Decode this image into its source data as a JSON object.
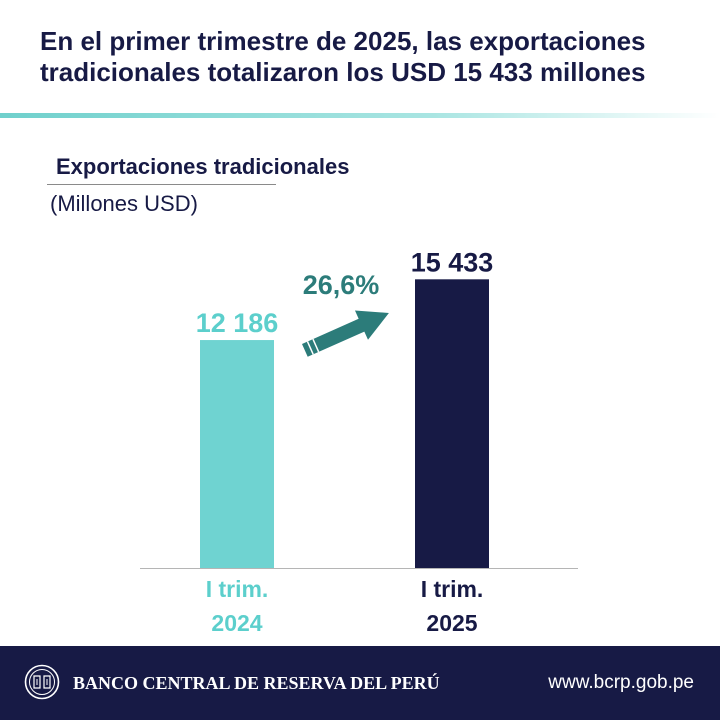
{
  "headline": {
    "line1": "En el primer trimestre de 2025, las exportaciones",
    "line2": "tradicionales totalizaron los USD 15 433 millones"
  },
  "chart_data": {
    "type": "bar",
    "title": "Exportaciones tradicionales",
    "unit": "(Millones USD)",
    "categories": [
      {
        "line1": "I trim.",
        "line2": "2024"
      },
      {
        "line1": "I trim.",
        "line2": "2025"
      }
    ],
    "values": [
      12186,
      15433
    ],
    "value_labels": [
      "12 186",
      "15 433"
    ],
    "colors": [
      "#6fd3d1",
      "#171a45"
    ],
    "category_label_colors": [
      "#5ccfcc",
      "#171a45"
    ],
    "annotation": {
      "label": "26,6%",
      "color": "#2c7c7a",
      "icon": "arrow-up-right-icon"
    },
    "ylim": [
      0,
      17000
    ],
    "grid": false,
    "legend": "none"
  },
  "footer": {
    "icon": "bcrp-seal-icon",
    "bank_name": "BANCO CENTRAL DE RESERVA DEL PERÚ",
    "url": "www.bcrp.gob.pe",
    "background": "#171a45"
  }
}
